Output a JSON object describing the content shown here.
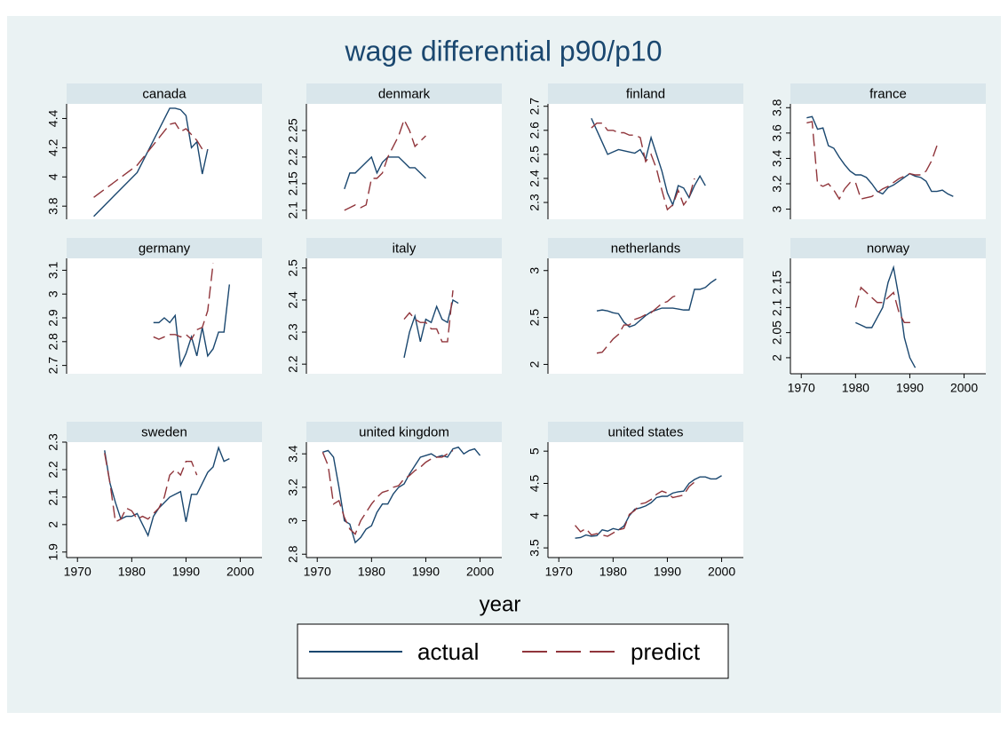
{
  "chart_data": {
    "type": "line",
    "title": "wage differential p90/p10",
    "xlabel": "year",
    "xlim": [
      1968,
      2004
    ],
    "xticks": [
      1970,
      1980,
      1990,
      2000
    ],
    "series": [
      {
        "name": "actual",
        "color": "#1a476f",
        "line_style": "solid"
      },
      {
        "name": "predict",
        "color": "#90353b",
        "line_style": "dashed"
      }
    ],
    "panels": [
      {
        "title": "canada",
        "ylim": [
          3.71,
          4.5
        ],
        "yticks": [
          3.8,
          4,
          4.2,
          4.4
        ],
        "x": [
          1973,
          1981,
          1987,
          1988,
          1989,
          1990,
          1991,
          1992,
          1993,
          1994
        ],
        "series": [
          {
            "values": [
              3.73,
              4.03,
              4.47,
              4.47,
              4.46,
              4.42,
              4.2,
              4.24,
              4.02,
              4.19
            ]
          },
          {
            "values": [
              3.86,
              4.08,
              4.36,
              4.37,
              4.31,
              4.33,
              4.29,
              4.25,
              4.19,
              4.18
            ]
          }
        ]
      },
      {
        "title": "denmark",
        "ylim": [
          2.083,
          2.3
        ],
        "yticks": [
          2.1,
          2.15,
          2.2,
          2.25
        ],
        "x": [
          1975,
          1976,
          1977,
          1978,
          1979,
          1980,
          1981,
          1982,
          1983,
          1984,
          1985,
          1986,
          1987,
          1988,
          1989,
          1990
        ],
        "series": [
          {
            "values": [
              2.14,
              2.17,
              2.17,
              2.18,
              2.19,
              2.2,
              2.17,
              2.19,
              2.2,
              2.2,
              2.2,
              2.19,
              2.18,
              2.18,
              2.17,
              2.16
            ]
          },
          {
            "values": [
              2.1,
              2.105,
              2.11,
              2.105,
              2.11,
              2.16,
              2.16,
              2.17,
              2.2,
              2.22,
              2.24,
              2.27,
              2.25,
              2.22,
              2.23,
              2.24
            ]
          }
        ]
      },
      {
        "title": "finland",
        "ylim": [
          2.23,
          2.71
        ],
        "yticks": [
          2.3,
          2.4,
          2.5,
          2.6,
          2.7
        ],
        "x": [
          1976,
          1977,
          1978,
          1979,
          1980,
          1981,
          1982,
          1983,
          1984,
          1985,
          1986,
          1987,
          1988,
          1989,
          1990,
          1991,
          1992,
          1993,
          1994,
          1995,
          1996,
          1997
        ],
        "series": [
          {
            "values": [
              2.65,
              2.6,
              2.55,
              2.5,
              2.51,
              2.52,
              2.515,
              2.51,
              2.505,
              2.52,
              2.48,
              2.57,
              2.5,
              2.43,
              2.34,
              2.29,
              2.37,
              2.36,
              2.32,
              2.37,
              2.41,
              2.37
            ]
          },
          {
            "values": [
              2.61,
              2.63,
              2.63,
              2.6,
              2.6,
              2.59,
              2.59,
              2.58,
              2.58,
              2.57,
              2.47,
              2.5,
              2.44,
              2.35,
              2.27,
              2.29,
              2.35,
              2.29,
              2.32,
              2.4,
              null,
              null
            ]
          }
        ]
      },
      {
        "title": "france",
        "ylim": [
          2.92,
          3.83
        ],
        "yticks": [
          3,
          3.2,
          3.4,
          3.6,
          3.8
        ],
        "x": [
          1971,
          1972,
          1973,
          1974,
          1975,
          1976,
          1977,
          1978,
          1979,
          1980,
          1981,
          1982,
          1983,
          1984,
          1985,
          1986,
          1987,
          1988,
          1989,
          1990,
          1991,
          1992,
          1993,
          1994,
          1995,
          1996,
          1997,
          1998
        ],
        "series": [
          {
            "values": [
              3.72,
              3.73,
              3.63,
              3.64,
              3.5,
              3.48,
              3.41,
              3.35,
              3.3,
              3.27,
              3.27,
              3.25,
              3.2,
              3.14,
              3.12,
              3.17,
              3.19,
              3.22,
              3.25,
              3.28,
              3.26,
              3.25,
              3.22,
              3.14,
              3.14,
              3.15,
              3.12,
              3.1
            ]
          },
          {
            "values": [
              3.68,
              3.69,
              3.2,
              3.18,
              3.2,
              3.15,
              3.08,
              3.16,
              3.21,
              3.21,
              3.08,
              3.09,
              3.1,
              3.13,
              3.16,
              3.18,
              3.21,
              3.24,
              3.26,
              3.28,
              3.27,
              3.27,
              3.3,
              3.38,
              3.5,
              null,
              null,
              null
            ]
          }
        ]
      },
      {
        "title": "germany",
        "ylim": [
          2.665,
          3.15
        ],
        "yticks": [
          2.7,
          2.8,
          2.9,
          3,
          3.1
        ],
        "x": [
          1984,
          1985,
          1986,
          1987,
          1988,
          1989,
          1990,
          1991,
          1992,
          1993,
          1994,
          1995,
          1996,
          1997,
          1998
        ],
        "series": [
          {
            "values": [
              2.88,
              2.88,
              2.9,
              2.88,
              2.91,
              2.7,
              2.75,
              2.82,
              2.74,
              2.86,
              2.74,
              2.77,
              2.84,
              2.84,
              3.04
            ]
          },
          {
            "values": [
              2.82,
              2.81,
              2.82,
              2.83,
              2.83,
              2.82,
              2.83,
              2.81,
              2.85,
              2.86,
              2.93,
              3.13,
              null,
              null,
              null
            ]
          }
        ]
      },
      {
        "title": "italy",
        "ylim": [
          2.17,
          2.53
        ],
        "yticks": [
          2.2,
          2.3,
          2.4,
          2.5
        ],
        "x": [
          1986,
          1987,
          1988,
          1989,
          1990,
          1991,
          1992,
          1993,
          1994,
          1995,
          1996
        ],
        "series": [
          {
            "values": [
              2.22,
              2.3,
              2.35,
              2.27,
              2.34,
              2.33,
              2.38,
              2.34,
              2.33,
              2.4,
              2.39
            ]
          },
          {
            "values": [
              2.34,
              2.36,
              2.34,
              2.33,
              2.33,
              2.31,
              2.31,
              2.27,
              2.27,
              2.43,
              null
            ]
          }
        ]
      },
      {
        "title": "netherlands",
        "ylim": [
          1.9,
          3.13
        ],
        "yticks": [
          2,
          2.5,
          3
        ],
        "x": [
          1977,
          1978,
          1979,
          1980,
          1981,
          1982,
          1983,
          1984,
          1985,
          1986,
          1987,
          1988,
          1989,
          1990,
          1991,
          1992,
          1993,
          1994,
          1995,
          1996,
          1997,
          1998,
          1999
        ],
        "series": [
          {
            "values": [
              2.57,
              2.58,
              2.57,
              2.55,
              2.54,
              2.45,
              2.4,
              2.42,
              2.47,
              2.52,
              2.56,
              2.58,
              2.6,
              2.6,
              2.6,
              2.59,
              2.58,
              2.58,
              2.8,
              2.8,
              2.82,
              2.87,
              2.91
            ]
          },
          {
            "values": [
              2.12,
              2.13,
              2.2,
              2.27,
              2.32,
              2.42,
              2.42,
              2.48,
              2.5,
              2.53,
              2.55,
              2.6,
              2.65,
              2.67,
              2.72,
              2.74,
              null,
              null,
              null,
              null,
              null,
              null,
              null
            ]
          }
        ]
      },
      {
        "title": "norway",
        "ylim": [
          1.968,
          2.198
        ],
        "yticks": [
          2,
          2.05,
          2.1,
          2.15
        ],
        "x": [
          1980,
          1981,
          1982,
          1983,
          1984,
          1985,
          1986,
          1987,
          1988,
          1989,
          1990,
          1991
        ],
        "series": [
          {
            "values": [
              2.07,
              2.065,
              2.06,
              2.06,
              2.08,
              2.1,
              2.15,
              2.18,
              2.12,
              2.04,
              2.0,
              1.98
            ]
          },
          {
            "values": [
              2.1,
              2.14,
              2.13,
              2.12,
              2.11,
              2.11,
              2.12,
              2.13,
              2.09,
              2.07,
              2.07,
              2.07
            ]
          }
        ]
      },
      {
        "title": "sweden",
        "ylim": [
          1.88,
          2.3
        ],
        "yticks": [
          1.9,
          2,
          2.1,
          2.2,
          2.3
        ],
        "x": [
          1975,
          1976,
          1977,
          1978,
          1979,
          1980,
          1981,
          1982,
          1983,
          1984,
          1985,
          1986,
          1987,
          1988,
          1989,
          1990,
          1991,
          1992,
          1993,
          1994,
          1995,
          1996,
          1997,
          1998
        ],
        "series": [
          {
            "values": [
              2.27,
              2.15,
              2.08,
              2.02,
              2.03,
              2.03,
              2.04,
              2.0,
              1.96,
              2.03,
              2.06,
              2.08,
              2.1,
              2.11,
              2.12,
              2.01,
              2.11,
              2.11,
              2.15,
              2.19,
              2.21,
              2.28,
              2.23,
              2.24
            ]
          },
          {
            "values": [
              2.26,
              2.15,
              2.01,
              2.02,
              2.06,
              2.05,
              2.02,
              2.03,
              2.02,
              2.04,
              2.06,
              2.1,
              2.18,
              2.2,
              2.18,
              2.23,
              2.23,
              2.18,
              null,
              null,
              null,
              null,
              null,
              null
            ]
          }
        ]
      },
      {
        "title": "united kingdom",
        "ylim": [
          2.78,
          3.47
        ],
        "yticks": [
          2.8,
          3,
          3.2,
          3.4
        ],
        "x": [
          1971,
          1972,
          1973,
          1974,
          1975,
          1976,
          1977,
          1978,
          1979,
          1980,
          1981,
          1982,
          1983,
          1984,
          1985,
          1986,
          1987,
          1988,
          1989,
          1990,
          1991,
          1992,
          1993,
          1994,
          1995,
          1996,
          1997,
          1998,
          1999,
          2000
        ],
        "series": [
          {
            "values": [
              3.41,
              3.42,
              3.38,
              3.2,
              3.0,
              2.98,
              2.87,
              2.9,
              2.95,
              2.97,
              3.05,
              3.1,
              3.1,
              3.16,
              3.2,
              3.22,
              3.28,
              3.33,
              3.38,
              3.39,
              3.4,
              3.38,
              3.39,
              3.38,
              3.43,
              3.44,
              3.4,
              3.42,
              3.43,
              3.39
            ]
          },
          {
            "values": [
              3.41,
              3.33,
              3.1,
              3.12,
              3.02,
              2.95,
              2.92,
              3.0,
              3.05,
              3.1,
              3.14,
              3.17,
              3.18,
              3.2,
              3.21,
              3.25,
              3.27,
              3.3,
              3.32,
              3.35,
              3.37,
              3.38,
              3.38,
              3.4,
              3.42,
              null,
              null,
              null,
              null,
              null
            ]
          }
        ]
      },
      {
        "title": "united states",
        "ylim": [
          3.35,
          5.14
        ],
        "yticks": [
          3.5,
          4,
          4.5,
          5
        ],
        "x": [
          1973,
          1974,
          1975,
          1976,
          1977,
          1978,
          1979,
          1980,
          1981,
          1982,
          1983,
          1984,
          1985,
          1986,
          1987,
          1988,
          1989,
          1990,
          1991,
          1992,
          1993,
          1994,
          1995,
          1996,
          1997,
          1998,
          1999,
          2000
        ],
        "series": [
          {
            "values": [
              3.65,
              3.66,
              3.7,
              3.68,
              3.69,
              3.78,
              3.76,
              3.8,
              3.78,
              3.84,
              4.0,
              4.1,
              4.12,
              4.15,
              4.2,
              4.28,
              4.3,
              4.3,
              4.35,
              4.37,
              4.38,
              4.5,
              4.56,
              4.6,
              4.6,
              4.57,
              4.57,
              4.62
            ]
          },
          {
            "values": [
              3.85,
              3.75,
              3.8,
              3.7,
              3.72,
              3.7,
              3.68,
              3.73,
              3.78,
              3.8,
              4.02,
              4.08,
              4.18,
              4.2,
              4.25,
              4.33,
              4.38,
              4.35,
              4.28,
              4.3,
              4.32,
              4.45,
              4.52,
              null,
              null,
              null,
              null,
              null
            ]
          }
        ]
      }
    ]
  }
}
